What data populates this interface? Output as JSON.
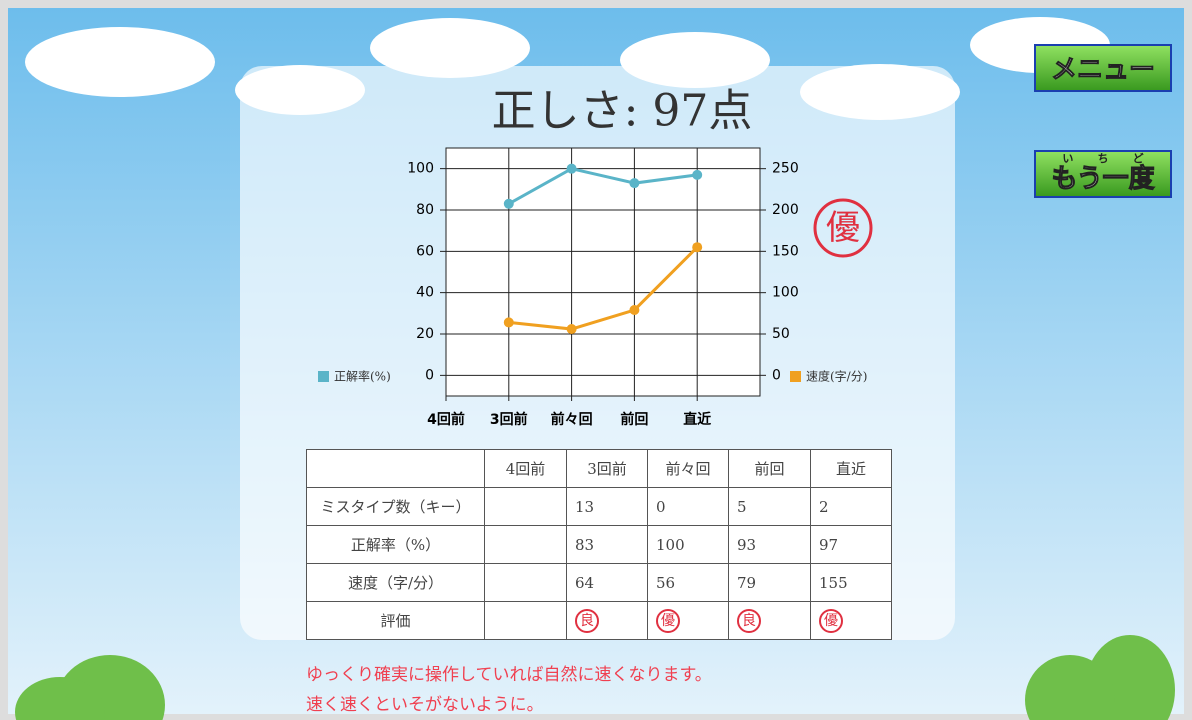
{
  "header": {
    "title": "正しさ: 97点"
  },
  "stamp": "優",
  "buttons": [
    {
      "label": "メニュー"
    },
    {
      "label": "もう一度",
      "ruby": "いちど"
    }
  ],
  "chart_data": {
    "type": "line",
    "categories": [
      "4回前",
      "3回前",
      "前々回",
      "前回",
      "直近"
    ],
    "series": [
      {
        "name": "正解率(%)",
        "color": "#5ab4c8",
        "values": [
          null,
          83,
          100,
          93,
          97
        ]
      },
      {
        "name": "速度(字/分)",
        "color": "#f0a020",
        "axis": "y2",
        "values": [
          null,
          64,
          56,
          79,
          155
        ]
      }
    ],
    "ylim": [
      -10,
      110
    ],
    "yticks": [
      0,
      20,
      40,
      60,
      80,
      100
    ],
    "y2lim": [
      -25,
      275
    ],
    "y2ticks": [
      0,
      50,
      100,
      150,
      200,
      250
    ],
    "grid": true
  },
  "table": {
    "header": [
      null,
      "4回前",
      "3回前",
      "前々回",
      "前回",
      "直近"
    ],
    "rows": [
      [
        "ミスタイプ数（キー）",
        null,
        13,
        0,
        5,
        2
      ],
      [
        "正解率（%）",
        null,
        83,
        100,
        93,
        97
      ],
      [
        "速度（字/分）",
        null,
        64,
        56,
        79,
        155
      ],
      [
        "評価",
        null,
        "良",
        "優",
        "良",
        "優"
      ]
    ]
  },
  "message": [
    "ゆっくり確実に操作していれば自然に速くなります。",
    "速く速くといそがないように。"
  ]
}
